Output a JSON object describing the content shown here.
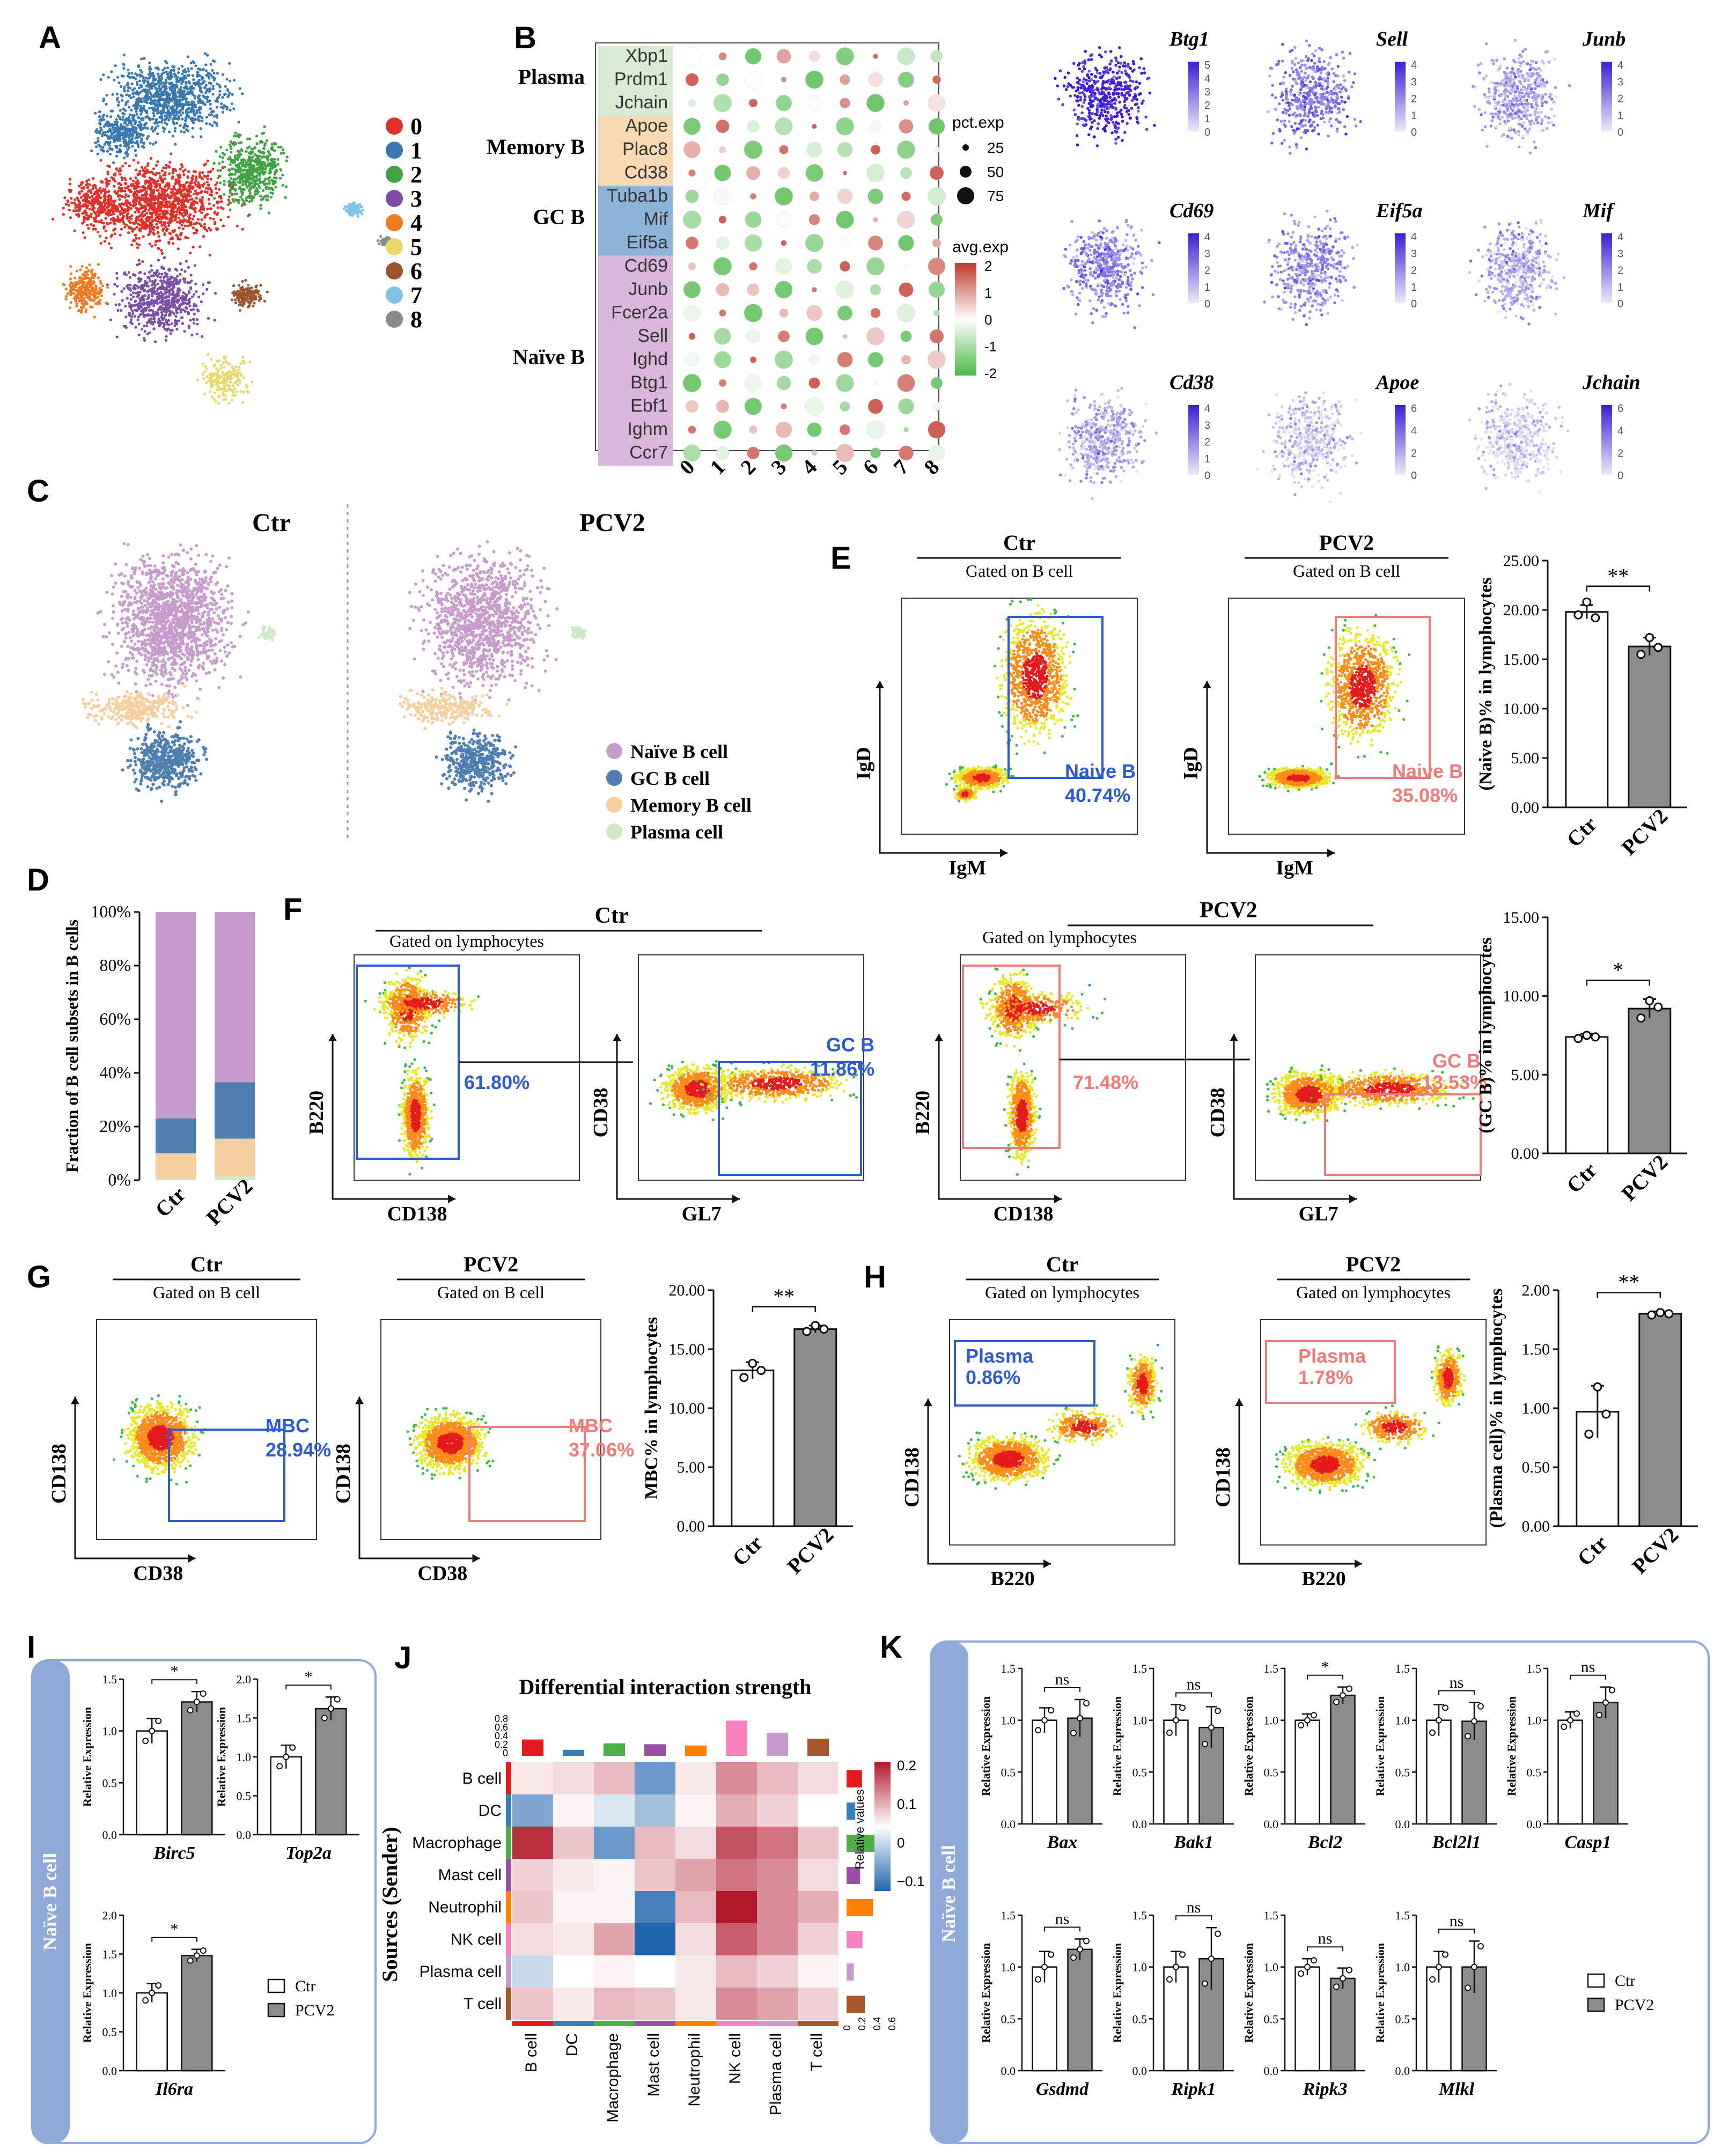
{
  "panels": {
    "A": "A",
    "B": "B",
    "C": "C",
    "D": "D",
    "E": "E",
    "F": "F",
    "G": "G",
    "H": "H",
    "I": "I",
    "J": "J",
    "K": "K"
  },
  "clusters": {
    "labels": [
      "0",
      "1",
      "2",
      "3",
      "4",
      "5",
      "6",
      "7",
      "8"
    ],
    "colors": [
      "#e0302a",
      "#3a78b0",
      "#3fa344",
      "#7b4ea3",
      "#f07a22",
      "#e8d86a",
      "#9a5530",
      "#7fc3e6",
      "#8a8a8a"
    ]
  },
  "dotplot": {
    "groups": [
      {
        "name": "Plasma",
        "genes": [
          "Xbp1",
          "Prdm1",
          "Jchain"
        ],
        "color": "#d9ecd3"
      },
      {
        "name": "Memory B",
        "genes": [
          "Apoe",
          "Plac8",
          "Cd38"
        ],
        "color": "#f7d9b3"
      },
      {
        "name": "GC B",
        "genes": [
          "Tuba1b",
          "Mif",
          "Eif5a"
        ],
        "color": "#8db4d8"
      },
      {
        "name": "Naïve  B",
        "genes": [
          "Cd69",
          "Junb",
          "Fcer2a",
          "Sell",
          "Ighd",
          "Btg1",
          "Ebf1",
          "Ighm",
          "Ccr7"
        ],
        "color": "#d8b7db"
      }
    ],
    "x_labels": [
      "0",
      "1",
      "2",
      "3",
      "4",
      "5",
      "6",
      "7",
      "8"
    ],
    "pct_title": "pct.exp",
    "pct_ticks": [
      "25",
      "50",
      "75"
    ],
    "avg_title": "avg.exp",
    "avg_ticks": [
      "2",
      "1",
      "0",
      "-1",
      "-2"
    ]
  },
  "featureplots": [
    {
      "gene": "Btg1",
      "ticks": [
        "5",
        "4",
        "3",
        "2",
        "1",
        "0"
      ]
    },
    {
      "gene": "Sell",
      "ticks": [
        "4",
        "3",
        "2",
        "1",
        "0"
      ]
    },
    {
      "gene": "Junb",
      "ticks": [
        "4",
        "3",
        "2",
        "1",
        "0"
      ]
    },
    {
      "gene": "Cd69",
      "ticks": [
        "4",
        "3",
        "2",
        "1",
        "0"
      ]
    },
    {
      "gene": "Eif5a",
      "ticks": [
        "4",
        "3",
        "2",
        "1",
        "0"
      ]
    },
    {
      "gene": "Mif",
      "ticks": [
        "4",
        "3",
        "2",
        "1",
        "0"
      ]
    },
    {
      "gene": "Cd38",
      "ticks": [
        "4",
        "3",
        "2",
        "1",
        "0"
      ]
    },
    {
      "gene": "Apoe",
      "ticks": [
        "6",
        "4",
        "2",
        "0"
      ]
    },
    {
      "gene": "Jchain",
      "ticks": [
        "6",
        "4",
        "2",
        "0"
      ]
    }
  ],
  "panelC": {
    "left_title": "Ctr",
    "right_title": "PCV2",
    "legend": [
      {
        "label": "Naïve B cell",
        "color": "#c79ccc"
      },
      {
        "label": "GC B cell",
        "color": "#4f7fb0"
      },
      {
        "label": "Memory B cell",
        "color": "#f5cfa0"
      },
      {
        "label": "Plasma cell",
        "color": "#cfe8c6"
      }
    ]
  },
  "chart_data": [
    {
      "id": "D",
      "type": "bar",
      "stacked": true,
      "categories": [
        "Ctr",
        "PCV2"
      ],
      "ylabel": "Fraction of B cell subsets in B cells",
      "yticks": [
        "0%",
        "20%",
        "40%",
        "60%",
        "80%",
        "100%"
      ],
      "series": [
        {
          "name": "Plasma cell",
          "values": [
            0.5,
            1.5
          ]
        },
        {
          "name": "Memory B cell",
          "values": [
            9.5,
            14
          ]
        },
        {
          "name": "GC B cell",
          "values": [
            13,
            21
          ]
        },
        {
          "name": "Naïve B cell",
          "values": [
            77,
            63.5
          ]
        }
      ]
    },
    {
      "id": "E",
      "type": "bar",
      "categories": [
        "Ctr",
        "PCV2"
      ],
      "values": [
        19.8,
        16.3
      ],
      "errors": [
        0.7,
        0.9
      ],
      "points": [
        [
          19.5,
          20.8,
          19.2
        ],
        [
          15.5,
          17.2,
          16.2
        ]
      ],
      "ylim": [
        0,
        25
      ],
      "yticks": [
        "0.00",
        "5.00",
        "10.00",
        "15.00",
        "20.00",
        "25.00"
      ],
      "ylabel": "(Naive B)% in lymphocytes",
      "sig": "**"
    },
    {
      "id": "F",
      "type": "bar",
      "categories": [
        "Ctr",
        "PCV2"
      ],
      "values": [
        7.4,
        9.2
      ],
      "errors": [
        0.2,
        0.6
      ],
      "points": [
        [
          7.3,
          7.5,
          7.4
        ],
        [
          8.6,
          9.7,
          9.3
        ]
      ],
      "ylim": [
        0,
        15
      ],
      "yticks": [
        "0.00",
        "5.00",
        "10.00",
        "15.00"
      ],
      "ylabel": "(GC B)% in lymphocytes",
      "sig": "*"
    },
    {
      "id": "G",
      "type": "bar",
      "categories": [
        "Ctr",
        "PCV2"
      ],
      "values": [
        13.2,
        16.7
      ],
      "errors": [
        0.7,
        0.3
      ],
      "points": [
        [
          12.6,
          13.8,
          13.2
        ],
        [
          16.5,
          17.0,
          16.7
        ]
      ],
      "ylim": [
        0,
        20
      ],
      "yticks": [
        "0.00",
        "5.00",
        "10.00",
        "15.00",
        "20.00"
      ],
      "ylabel": "MBC% in lymphocytes",
      "sig": "**"
    },
    {
      "id": "H",
      "type": "bar",
      "categories": [
        "Ctr",
        "PCV2"
      ],
      "values": [
        0.97,
        1.8
      ],
      "errors": [
        0.22,
        0.02
      ],
      "points": [
        [
          0.78,
          1.18,
          0.95
        ],
        [
          1.79,
          1.81,
          1.8
        ]
      ],
      "ylim": [
        0,
        2
      ],
      "yticks": [
        "0.00",
        "0.50",
        "1.00",
        "1.50",
        "2.00"
      ],
      "ylabel": "(Plasma cell)% in lymphocytes",
      "sig": "**"
    },
    {
      "id": "I",
      "type": "bar",
      "panel_label": "Naïve B cell",
      "legend": [
        "Ctr",
        "PCV2"
      ],
      "ylabel": "Relative Expression",
      "genes": [
        {
          "gene": "Birc5",
          "values": [
            1.0,
            1.28
          ],
          "errors": [
            0.12,
            0.1
          ],
          "ylim": [
            0,
            1.5
          ],
          "yticks": [
            "0.0",
            "0.5",
            "1.0",
            "1.5"
          ],
          "sig": "*"
        },
        {
          "gene": "Top2a",
          "values": [
            1.0,
            1.62
          ],
          "errors": [
            0.15,
            0.15
          ],
          "ylim": [
            0,
            2.0
          ],
          "yticks": [
            "0.0",
            "0.5",
            "1.0",
            "1.5",
            "2.0"
          ],
          "sig": "*"
        },
        {
          "gene": "Il6ra",
          "values": [
            1.0,
            1.48
          ],
          "errors": [
            0.12,
            0.08
          ],
          "ylim": [
            0,
            2.0
          ],
          "yticks": [
            "0.0",
            "0.5",
            "1.0",
            "1.5",
            "2.0"
          ],
          "sig": "*"
        }
      ]
    },
    {
      "id": "J",
      "type": "heatmap",
      "title": "Differential interaction strength",
      "rows": [
        "B cell",
        "DC",
        "Macrophage",
        "Mast cell",
        "Neutrophil",
        "NK cell",
        "Plasma cell",
        "T cell"
      ],
      "cols": [
        "B cell",
        "DC",
        "Macrophage",
        "Mast cell",
        "Neutrophil",
        "NK cell",
        "Plasma cell",
        "T cell"
      ],
      "ylabel": "Sources (Sender)",
      "legend_title": "Relative values",
      "scale_ticks": [
        "0.2",
        "0.1",
        "0",
        "−0.1"
      ],
      "top_ticks": [
        "0.8",
        "0.6",
        "0.4",
        "0.2",
        "0"
      ],
      "right_ticks": [
        "0",
        "0.2",
        "0.4",
        "0.6"
      ],
      "values": [
        [
          0.02,
          0.03,
          0.06,
          -0.08,
          0.02,
          0.1,
          0.06,
          0.03
        ],
        [
          -0.07,
          0.01,
          -0.02,
          -0.05,
          0.01,
          0.07,
          0.04,
          0.0
        ],
        [
          0.18,
          0.05,
          -0.08,
          0.06,
          0.03,
          0.15,
          0.12,
          0.05
        ],
        [
          0.04,
          0.02,
          0.01,
          0.05,
          0.08,
          0.12,
          0.1,
          0.03
        ],
        [
          0.05,
          0.01,
          0.01,
          -0.1,
          0.06,
          0.2,
          0.1,
          0.07
        ],
        [
          0.03,
          0.02,
          0.08,
          -0.12,
          0.03,
          0.14,
          0.1,
          0.04
        ],
        [
          -0.03,
          0.0,
          0.01,
          0.0,
          0.02,
          0.06,
          0.04,
          0.01
        ],
        [
          0.05,
          0.02,
          0.06,
          0.05,
          0.02,
          0.1,
          0.08,
          0.04
        ]
      ],
      "col_sums": [
        0.38,
        0.14,
        0.29,
        0.27,
        0.24,
        0.82,
        0.54,
        0.4
      ],
      "row_sums": [
        0.32,
        0.18,
        0.62,
        0.28,
        0.55,
        0.33,
        0.15,
        0.38
      ]
    },
    {
      "id": "K",
      "type": "bar",
      "panel_label": "Naïve B cell",
      "legend": [
        "Ctr",
        "PCV2"
      ],
      "ylabel": "Relative Expression",
      "genes": [
        {
          "gene": "Bax",
          "values": [
            1.0,
            1.02
          ],
          "errors": [
            0.12,
            0.18
          ],
          "sig": "ns"
        },
        {
          "gene": "Bak1",
          "values": [
            1.0,
            0.93
          ],
          "errors": [
            0.15,
            0.2
          ],
          "sig": "ns"
        },
        {
          "gene": "Bcl2",
          "values": [
            1.0,
            1.24
          ],
          "errors": [
            0.06,
            0.08
          ],
          "sig": "*"
        },
        {
          "gene": "Bcl2l1",
          "values": [
            1.0,
            0.99
          ],
          "errors": [
            0.15,
            0.18
          ],
          "sig": "ns"
        },
        {
          "gene": "Casp1",
          "values": [
            1.0,
            1.17
          ],
          "errors": [
            0.08,
            0.15
          ],
          "sig": "ns"
        },
        {
          "gene": "Gsdmd",
          "values": [
            1.0,
            1.17
          ],
          "errors": [
            0.15,
            0.1
          ],
          "sig": "ns"
        },
        {
          "gene": "Ripk1",
          "values": [
            1.0,
            1.08
          ],
          "errors": [
            0.15,
            0.3
          ],
          "sig": "ns"
        },
        {
          "gene": "Ripk3",
          "values": [
            1.0,
            0.89
          ],
          "errors": [
            0.08,
            0.1
          ],
          "sig": "ns"
        },
        {
          "gene": "Mlkl",
          "values": [
            1.0,
            1.0
          ],
          "errors": [
            0.15,
            0.25
          ],
          "sig": "ns"
        }
      ],
      "ylim": [
        0,
        1.5
      ],
      "yticks": [
        "0.0",
        "0.5",
        "1.0",
        "1.5"
      ]
    }
  ],
  "flow": {
    "E": {
      "ctr_title": "Ctr",
      "pcv_title": "PCV2",
      "gate": "Gated on B cell",
      "xlabel": "IgM",
      "ylabel": "IgD",
      "ctr_gate": "Naive B",
      "ctr_pct": "40.74%",
      "pcv_gate": "Naive B",
      "pcv_pct": "35.08%"
    },
    "F": {
      "ctr_title": "Ctr",
      "pcv_title": "PCV2",
      "gate": "Gated on lymphocytes",
      "x1": "CD138",
      "y1": "B220",
      "x2": "GL7",
      "y2": "CD38",
      "ctr_pct1": "61.80%",
      "ctr_gate2": "GC B",
      "ctr_pct2": "11.86%",
      "pcv_pct1": "71.48%",
      "pcv_gate2": "GC B",
      "pcv_pct2": "13.53%"
    },
    "G": {
      "ctr_title": "Ctr",
      "pcv_title": "PCV2",
      "gate": "Gated on B cell",
      "xlabel": "CD38",
      "ylabel": "CD138",
      "ctr_gate": "MBC",
      "ctr_pct": "28.94%",
      "pcv_gate": "MBC",
      "pcv_pct": "37.06%"
    },
    "H": {
      "ctr_title": "Ctr",
      "pcv_title": "PCV2",
      "gate": "Gated on lymphocytes",
      "xlabel": "B220",
      "ylabel": "CD138",
      "ctr_gate": "Plasma",
      "ctr_pct": "0.86%",
      "pcv_gate": "Plasma",
      "pcv_pct": "1.78%"
    }
  },
  "colors": {
    "ctr": "#3b66d6",
    "pcv": "#ef7b7b",
    "bar_pcv": "#8c8c8c",
    "blue_gate": "#2f5bd0",
    "red_gate": "#ef7b7b"
  }
}
